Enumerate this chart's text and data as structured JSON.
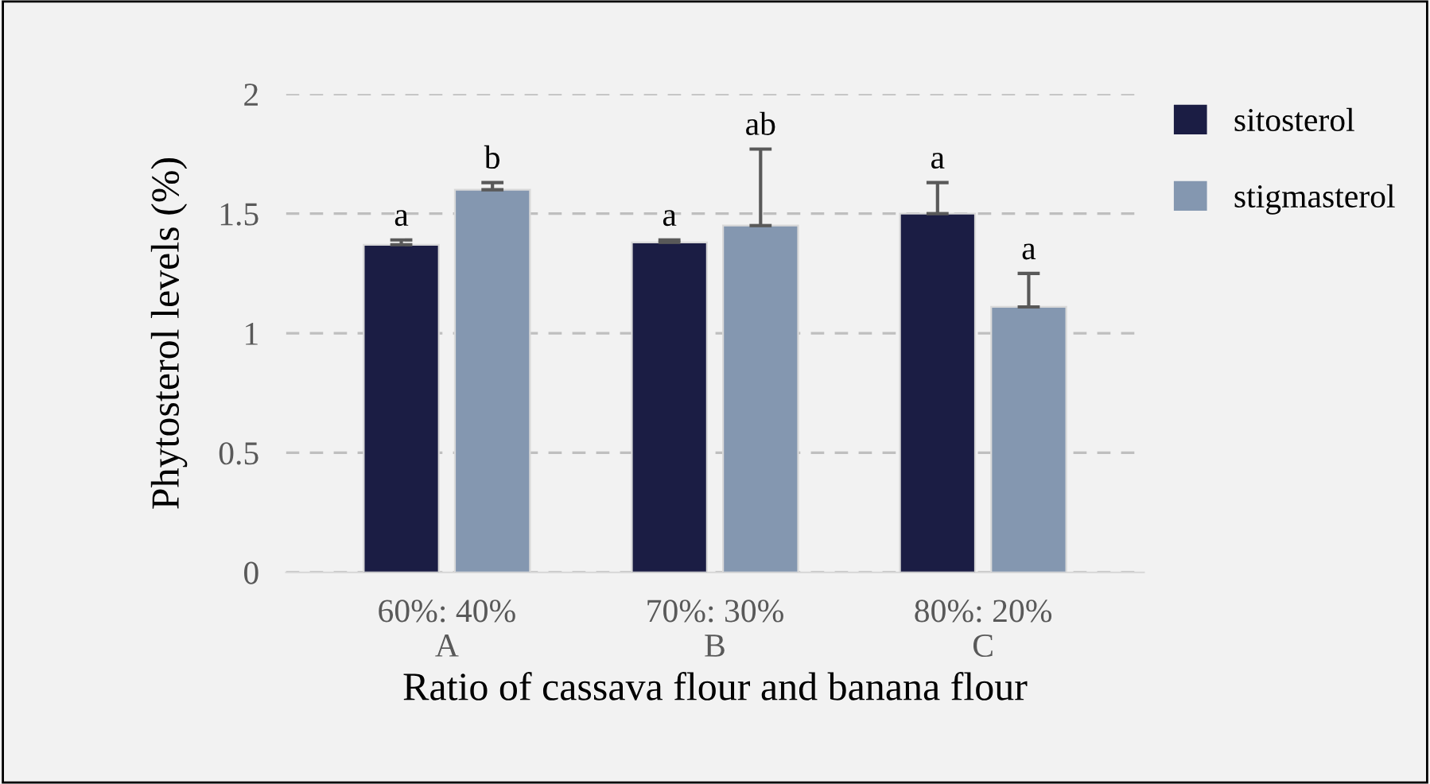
{
  "chart_data": {
    "type": "bar",
    "xlabel": "Ratio of cassava flour and banana flour",
    "ylabel": "Phytosterol levels (%)",
    "categories": [
      "60%: 40%\nA",
      "70%: 30%\nB",
      "80%: 20%\nC"
    ],
    "series": [
      {
        "name": "sitosterol",
        "color": "#1b1d44",
        "values": [
          1.37,
          1.38,
          1.5
        ],
        "errors": [
          0.02,
          0.01,
          0.13
        ],
        "value_labels": [
          "a",
          "a",
          "a"
        ]
      },
      {
        "name": "stigmasterol",
        "color": "#8497b0",
        "values": [
          1.6,
          1.45,
          1.11
        ],
        "errors": [
          0.03,
          0.32,
          0.14
        ],
        "value_labels": [
          "b",
          "ab",
          "a"
        ]
      }
    ],
    "ylim": [
      0,
      2
    ],
    "yticks": [
      0,
      0.5,
      1,
      1.5,
      2
    ],
    "grid": "y",
    "legend": "top right"
  }
}
